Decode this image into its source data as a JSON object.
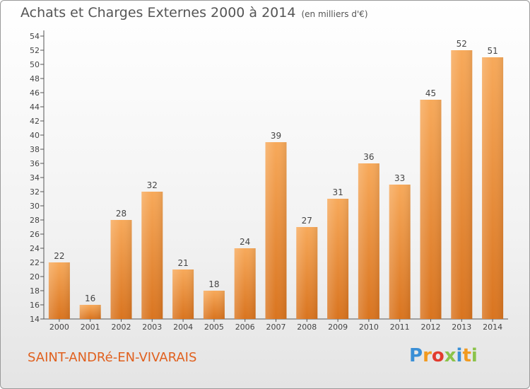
{
  "header": {
    "title": "Achats et Charges Externes 2000 à 2014",
    "unit": "(en milliers d'€)"
  },
  "footer": {
    "commune": "SAINT-ANDRé-EN-VIVARAIS",
    "brand_letters": [
      "P",
      "r",
      "o",
      "x",
      "i",
      "t",
      "i"
    ],
    "brand_colors": [
      "#3a8fd6",
      "#f29a1f",
      "#e23b2e",
      "#8bc34a",
      "#3a8fd6",
      "#f29a1f",
      "#8bc34a"
    ]
  },
  "chart_data": {
    "type": "bar",
    "title": "Achats et Charges Externes 2000 à 2014",
    "subtitle": "(en milliers d'€)",
    "xlabel": "",
    "ylabel": "",
    "categories": [
      "2000",
      "2001",
      "2002",
      "2003",
      "2004",
      "2005",
      "2006",
      "2007",
      "2008",
      "2009",
      "2010",
      "2011",
      "2012",
      "2013",
      "2014"
    ],
    "values": [
      22,
      16,
      28,
      32,
      21,
      18,
      24,
      39,
      27,
      31,
      36,
      33,
      45,
      52,
      51
    ],
    "ylim": [
      14,
      54
    ],
    "ytick_step": 2,
    "grid": false,
    "bar_color_top": "#f7a95a",
    "bar_color_bottom": "#d9741f",
    "axis_color": "#555555"
  }
}
